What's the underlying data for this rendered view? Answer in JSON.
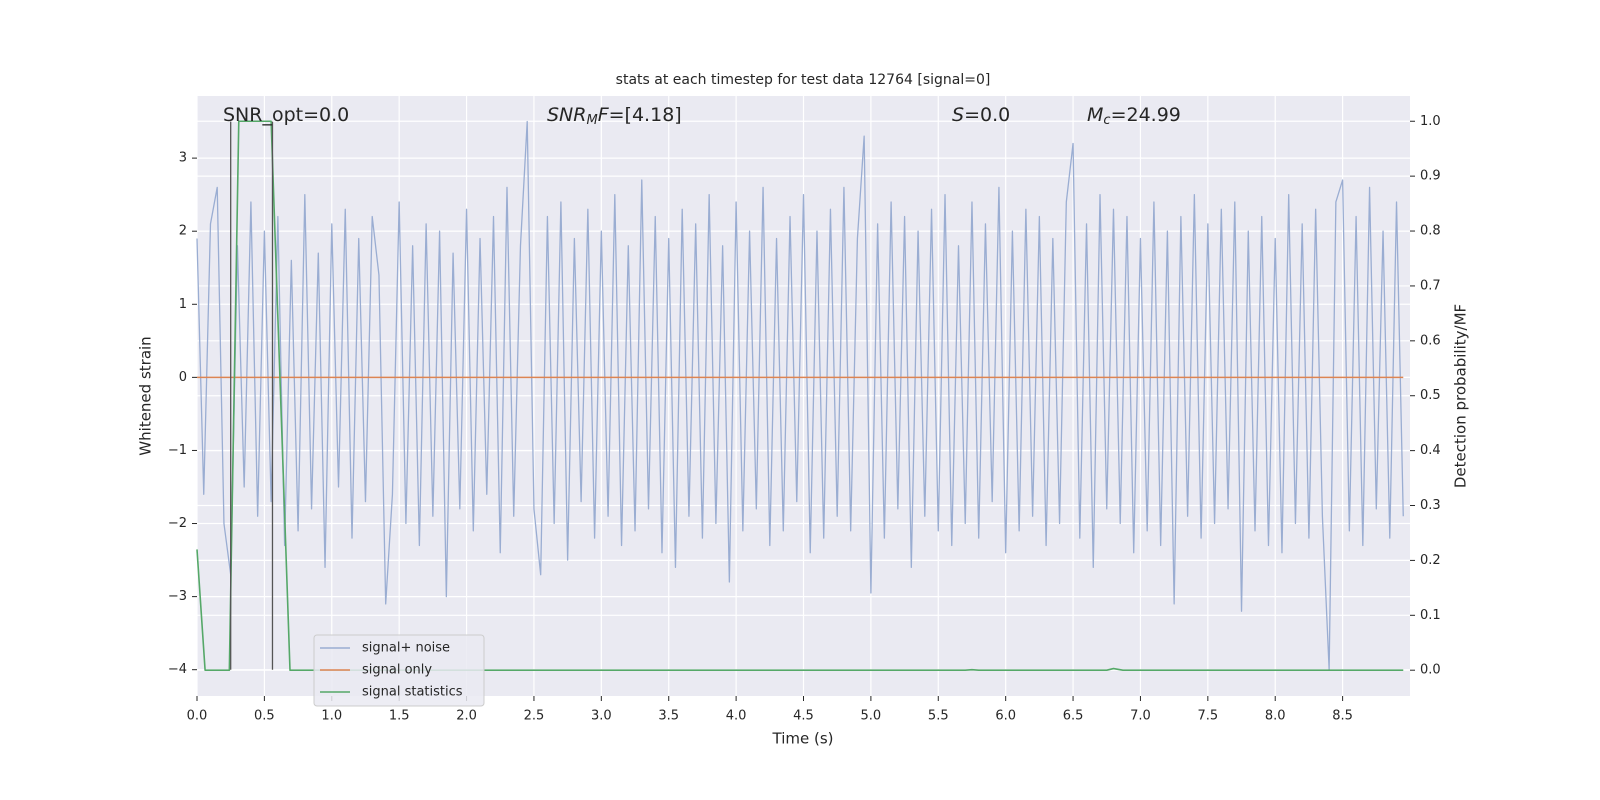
{
  "chart_data": {
    "type": "line",
    "title": "stats at each timestep for test data 12764 [signal=0]",
    "xlabel": "Time (s)",
    "ylabel": "Whitened strain",
    "y2label": "Detection probability/MF",
    "xlim": [
      0,
      9.0
    ],
    "ylim": [
      -4.36,
      3.85
    ],
    "y2lim": [
      -0.047,
      1.046
    ],
    "xticks": [
      {
        "value": 0,
        "label": "0.0"
      },
      0.5,
      {
        "value": 1,
        "label": "1.0"
      },
      1.5,
      {
        "value": 2,
        "label": "2.0"
      },
      2.5,
      {
        "value": 3,
        "label": "3.0"
      },
      3.5,
      {
        "value": 4,
        "label": "4.0"
      },
      4.5,
      {
        "value": 5,
        "label": "5.0"
      },
      5.5,
      {
        "value": 6,
        "label": "6.0"
      },
      6.5,
      {
        "value": 7,
        "label": "7.0"
      },
      7.5,
      {
        "value": 8,
        "label": "8.0"
      },
      8.5
    ],
    "yticks": [
      {
        "value": -4,
        "label": "−4"
      },
      {
        "value": -3,
        "label": "−3"
      },
      {
        "value": -2,
        "label": "−2"
      },
      {
        "value": -1,
        "label": "−1"
      },
      0,
      1,
      2,
      3
    ],
    "y2ticks": [
      {
        "value": 0,
        "label": "0.0"
      },
      0.1,
      0.2,
      0.3,
      0.4,
      0.5,
      0.6,
      0.7,
      0.8,
      0.9,
      {
        "value": 1,
        "label": "1.0"
      }
    ],
    "grid": true,
    "legend": "lower left",
    "series": [
      {
        "name": "signal+ noise",
        "color": "#9aadd2",
        "x": [
          0,
          0.05,
          0.1,
          0.15,
          0.2,
          0.25,
          0.3,
          0.35,
          0.4,
          0.45,
          0.5,
          0.55,
          0.6,
          0.65,
          0.7,
          0.75,
          0.8,
          0.85,
          0.9,
          0.95,
          1,
          1.05,
          1.1,
          1.15,
          1.2,
          1.25,
          1.3,
          1.35,
          1.4,
          1.45,
          1.5,
          1.55,
          1.6,
          1.65,
          1.7,
          1.75,
          1.8,
          1.85,
          1.9,
          1.95,
          2,
          2.05,
          2.1,
          2.15,
          2.2,
          2.25,
          2.3,
          2.35,
          2.4,
          2.45,
          2.5,
          2.55,
          2.6,
          2.65,
          2.7,
          2.75,
          2.8,
          2.85,
          2.9,
          2.95,
          3,
          3.05,
          3.1,
          3.15,
          3.2,
          3.25,
          3.3,
          3.35,
          3.4,
          3.45,
          3.5,
          3.55,
          3.6,
          3.65,
          3.7,
          3.75,
          3.8,
          3.85,
          3.9,
          3.95,
          4,
          4.05,
          4.1,
          4.15,
          4.2,
          4.25,
          4.3,
          4.35,
          4.4,
          4.45,
          4.5,
          4.55,
          4.6,
          4.65,
          4.7,
          4.75,
          4.8,
          4.85,
          4.9,
          4.95,
          5,
          5.05,
          5.1,
          5.15,
          5.2,
          5.25,
          5.3,
          5.35,
          5.4,
          5.45,
          5.5,
          5.55,
          5.6,
          5.65,
          5.7,
          5.75,
          5.8,
          5.85,
          5.9,
          5.95,
          6,
          6.05,
          6.1,
          6.15,
          6.2,
          6.25,
          6.3,
          6.35,
          6.4,
          6.45,
          6.5,
          6.55,
          6.6,
          6.65,
          6.7,
          6.75,
          6.8,
          6.85,
          6.9,
          6.95,
          7,
          7.05,
          7.1,
          7.15,
          7.2,
          7.25,
          7.3,
          7.35,
          7.4,
          7.45,
          7.5,
          7.55,
          7.6,
          7.65,
          7.7,
          7.75,
          7.8,
          7.85,
          7.9,
          7.95,
          8,
          8.05,
          8.1,
          8.15,
          8.2,
          8.25,
          8.3,
          8.35,
          8.4,
          8.45,
          8.5,
          8.55,
          8.6,
          8.65,
          8.7,
          8.75,
          8.8,
          8.85,
          8.9,
          8.95
        ],
        "values": [
          1.9,
          -1.6,
          2.1,
          2.6,
          -2.0,
          -2.7,
          1.8,
          -1.5,
          2.4,
          -1.9,
          2.0,
          -1.7,
          2.2,
          -2.3,
          1.6,
          -2.1,
          2.5,
          -1.8,
          1.7,
          -2.6,
          2.1,
          -1.5,
          2.3,
          -2.2,
          1.9,
          -1.7,
          2.2,
          1.4,
          -3.1,
          -1.6,
          2.4,
          -2.0,
          1.8,
          -2.3,
          2.1,
          -1.9,
          2.0,
          -3.0,
          1.7,
          -1.8,
          2.3,
          -2.1,
          1.9,
          -1.6,
          2.2,
          -2.4,
          2.6,
          -1.9,
          1.8,
          3.5,
          -1.8,
          -2.7,
          2.2,
          -2.0,
          2.4,
          -2.5,
          1.9,
          -1.7,
          2.3,
          -2.2,
          2.0,
          -1.9,
          2.5,
          -2.3,
          1.8,
          -2.1,
          2.7,
          -1.8,
          2.2,
          -2.4,
          1.9,
          -2.6,
          2.3,
          -1.9,
          2.1,
          -2.2,
          2.5,
          -2.0,
          1.8,
          -2.8,
          2.4,
          -2.1,
          2.0,
          -1.8,
          2.6,
          -2.3,
          1.9,
          -2.1,
          2.2,
          -1.7,
          2.5,
          -2.4,
          2.0,
          -2.2,
          2.3,
          -1.9,
          2.6,
          -2.1,
          1.9,
          3.3,
          -2.95,
          2.1,
          -2.2,
          2.4,
          -1.8,
          2.2,
          -2.6,
          2.0,
          -1.9,
          2.3,
          -2.1,
          2.5,
          -2.3,
          1.8,
          -2.0,
          2.4,
          -2.2,
          2.1,
          -1.7,
          2.6,
          -2.4,
          2.0,
          -2.1,
          2.3,
          -1.9,
          2.2,
          -2.3,
          1.9,
          -2.0,
          2.4,
          3.2,
          -2.2,
          2.1,
          -2.6,
          2.5,
          -1.8,
          2.3,
          -2.0,
          2.2,
          -2.4,
          1.9,
          -2.1,
          2.4,
          -2.3,
          2.0,
          -3.1,
          2.2,
          -1.9,
          2.5,
          -2.2,
          2.1,
          -2.0,
          2.3,
          -1.8,
          2.4,
          -3.2,
          2.0,
          -2.1,
          2.2,
          -2.3,
          1.9,
          -2.4,
          2.5,
          -2.0,
          2.1,
          -2.2,
          2.3,
          -1.9,
          -4.0,
          2.4,
          2.7,
          -2.1,
          2.2,
          -2.3,
          2.6,
          -1.8,
          2.0,
          -2.2,
          2.4,
          -1.9
        ]
      },
      {
        "name": "signal only",
        "color": "#dd8452",
        "x": [
          0,
          8.95
        ],
        "values": [
          0,
          0
        ]
      },
      {
        "name": "signal statistics",
        "color": "#55a868",
        "axis": "y2",
        "x": [
          0,
          0.06,
          0.24,
          0.31,
          0.55,
          0.69,
          5.7,
          5.75,
          5.8,
          6.75,
          6.8,
          6.87,
          8.95
        ],
        "values": [
          0.22,
          0,
          0,
          1,
          1,
          0,
          0,
          0.001,
          0,
          0,
          0.003,
          0,
          0
        ]
      }
    ],
    "vlines": [
      {
        "x": 0.25,
        "ymin": -4,
        "ymax": 3.5,
        "color": "#555555"
      },
      {
        "x": 0.56,
        "ymin": -4,
        "ymax": 3.5,
        "color": "#555555"
      }
    ],
    "annotations": [
      {
        "parts": [
          {
            "text": "SNR_opt=0.0"
          }
        ]
      },
      {
        "parts": [
          {
            "text": "SNR",
            "italic": true
          },
          {
            "text": "M",
            "italic": true,
            "sub": true
          },
          {
            "text": "F",
            "italic": true
          },
          {
            "text": "=[4.18]"
          }
        ]
      },
      {
        "parts": [
          {
            "text": "S",
            "italic": true
          },
          {
            "text": "=0.0"
          }
        ]
      },
      {
        "parts": [
          {
            "text": "M",
            "italic": true
          },
          {
            "text": "c",
            "italic": true,
            "sub": true
          },
          {
            "text": "=24.99"
          }
        ]
      }
    ]
  }
}
